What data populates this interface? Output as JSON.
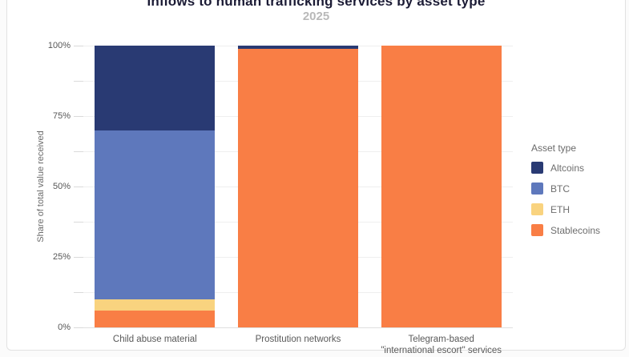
{
  "chart_data": {
    "type": "bar",
    "stacked": true,
    "title": "Inflows to human trafficking services by asset type",
    "subtitle": "2025",
    "ylabel": "Share of total value received",
    "xlabel": "",
    "categories": [
      "Child abuse material",
      "Prostitution networks",
      "Telegram-based\n\"international escort\" services"
    ],
    "series": [
      {
        "name": "Altcoins",
        "color": "#293a73",
        "values": [
          30,
          1,
          0
        ]
      },
      {
        "name": "BTC",
        "color": "#5e78bc",
        "values": [
          60,
          0,
          0
        ]
      },
      {
        "name": "ETH",
        "color": "#f9d37f",
        "values": [
          4,
          0,
          0
        ]
      },
      {
        "name": "Stablecoins",
        "color": "#f97e45",
        "values": [
          6,
          99,
          100
        ]
      }
    ],
    "ylim": [
      0,
      100
    ],
    "y_major_ticks": [
      {
        "value": 0,
        "label": "0%"
      },
      {
        "value": 25,
        "label": "25%"
      },
      {
        "value": 50,
        "label": "50%"
      },
      {
        "value": 75,
        "label": "75%"
      },
      {
        "value": 100,
        "label": "100%"
      }
    ],
    "y_minor_tick_step": 12.5,
    "grid": true,
    "legend_title": "Asset type",
    "legend_position": "right"
  }
}
